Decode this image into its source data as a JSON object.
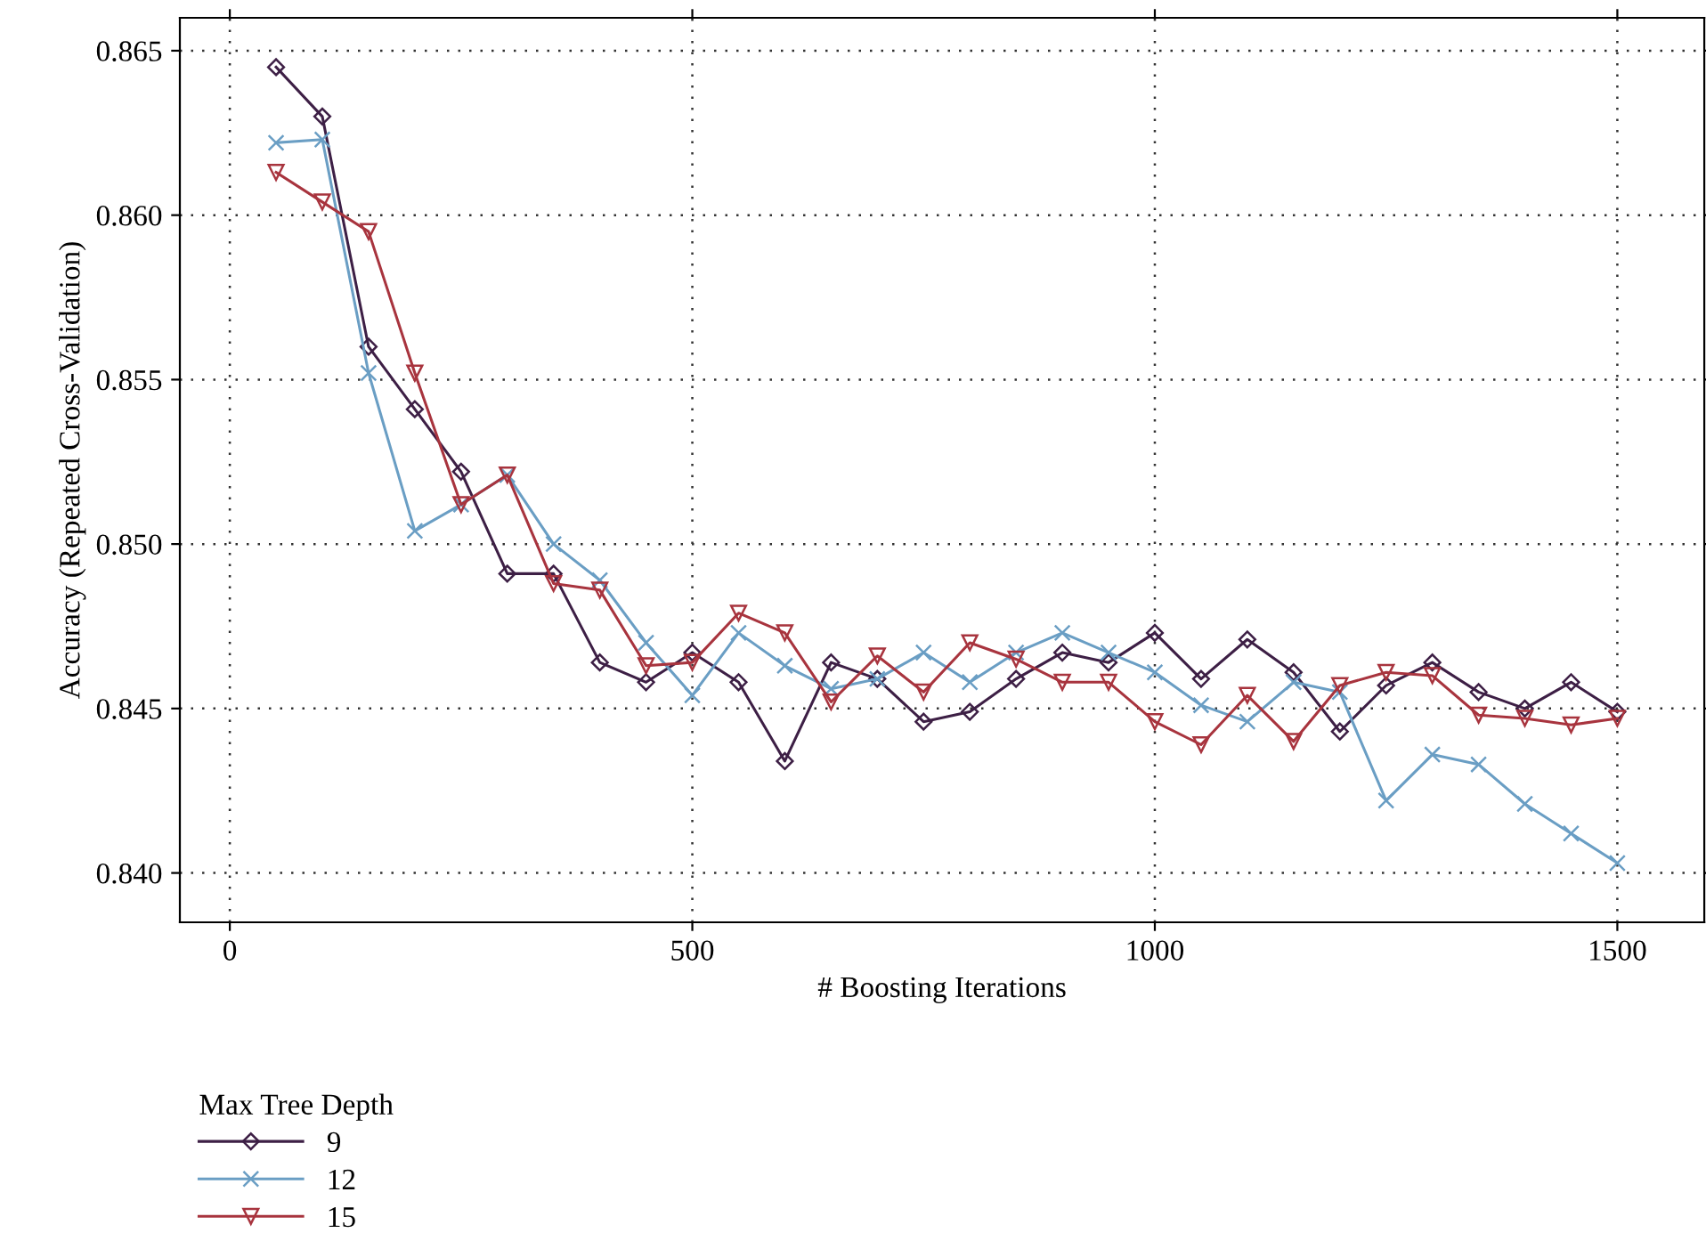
{
  "chart_data": {
    "type": "line",
    "xlabel": "# Boosting Iterations",
    "ylabel": "Accuracy (Repeated Cross-Validation)",
    "legend_title": "Max Tree Depth",
    "x": [
      50,
      100,
      150,
      200,
      250,
      300,
      350,
      400,
      450,
      500,
      550,
      600,
      650,
      700,
      750,
      800,
      850,
      900,
      950,
      1000,
      1050,
      1100,
      1150,
      1200,
      1250,
      1300,
      1350,
      1400,
      1450,
      1500
    ],
    "series": [
      {
        "name": "9",
        "color": "#3d1f45",
        "marker": "diamond",
        "values": [
          0.8645,
          0.863,
          0.856,
          0.8541,
          0.8522,
          0.8491,
          0.8491,
          0.8464,
          0.8458,
          0.8467,
          0.8458,
          0.8434,
          0.8464,
          0.8459,
          0.8446,
          0.8449,
          0.8459,
          0.8467,
          0.8464,
          0.8473,
          0.8459,
          0.8471,
          0.8461,
          0.8443,
          0.8457,
          0.8464,
          0.8455,
          0.845,
          0.8458,
          0.8449
        ]
      },
      {
        "name": "12",
        "color": "#6a9ec4",
        "marker": "cross",
        "values": [
          0.8622,
          0.8623,
          0.8552,
          0.8504,
          0.8512,
          0.8521,
          0.85,
          0.8489,
          0.847,
          0.8454,
          0.8473,
          0.8463,
          0.8456,
          0.8459,
          0.8467,
          0.8458,
          0.8467,
          0.8473,
          0.8467,
          0.8461,
          0.8451,
          0.8446,
          0.8458,
          0.8455,
          0.8422,
          0.8436,
          0.8433,
          0.8421,
          0.8412,
          0.8403
        ]
      },
      {
        "name": "15",
        "color": "#a8343e",
        "marker": "triangle",
        "values": [
          0.8613,
          0.8604,
          0.8595,
          0.8552,
          0.8512,
          0.8521,
          0.8488,
          0.8486,
          0.8463,
          0.8464,
          0.8479,
          0.8473,
          0.8452,
          0.8466,
          0.8455,
          0.847,
          0.8465,
          0.8458,
          0.8458,
          0.8446,
          0.8439,
          0.8454,
          0.844,
          0.8457,
          0.8461,
          0.846,
          0.8448,
          0.8447,
          0.8445,
          0.8447
        ]
      }
    ],
    "xlim": [
      -54,
      1594
    ],
    "xticks": [
      0,
      500,
      1000,
      1500
    ],
    "ylim": [
      0.8385,
      0.866
    ],
    "yticks": [
      {
        "value": 0.84,
        "label": "0.840"
      },
      0.845,
      {
        "value": 0.85,
        "label": "0.850"
      },
      0.855,
      {
        "value": 0.86,
        "label": "0.860"
      },
      0.865
    ],
    "grid": true,
    "legend": "bottom left",
    "line_style": "solid"
  }
}
